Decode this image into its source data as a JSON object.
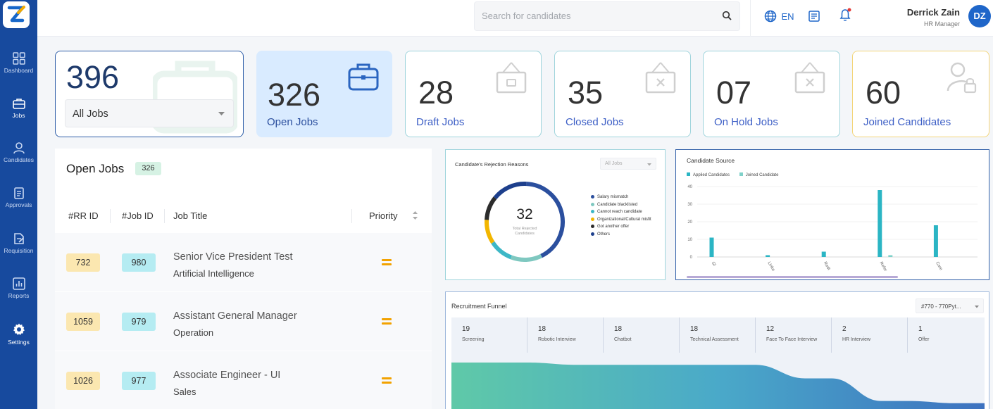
{
  "sidebar": {
    "items": [
      {
        "label": "Dashboard",
        "icon": "dashboard-icon"
      },
      {
        "label": "Jobs",
        "icon": "briefcase-icon",
        "active": true
      },
      {
        "label": "Candidates",
        "icon": "user-icon"
      },
      {
        "label": "Approvals",
        "icon": "clipboard-icon"
      },
      {
        "label": "Requisition",
        "icon": "edit-document-icon"
      },
      {
        "label": "Reports",
        "icon": "bar-chart-icon"
      },
      {
        "label": "Settings",
        "icon": "gear-icon"
      }
    ]
  },
  "topbar": {
    "search_placeholder": "Search for candidates",
    "language": "EN",
    "user_name": "Derrick Zain",
    "user_role": "HR Manager",
    "avatar_initials": "DZ"
  },
  "cards": [
    {
      "value": "396",
      "select": "All Jobs"
    },
    {
      "value": "326",
      "label": "Open Jobs"
    },
    {
      "value": "28",
      "label": "Draft Jobs"
    },
    {
      "value": "35",
      "label": "Closed Jobs"
    },
    {
      "value": "07",
      "label": "On Hold Jobs"
    },
    {
      "value": "60",
      "label": "Joined Candidates"
    }
  ],
  "open_jobs": {
    "title": "Open Jobs",
    "count": "326",
    "columns": [
      "#RR ID",
      "#Job ID",
      "Job Title",
      "Priority"
    ],
    "rows": [
      {
        "rr": "732",
        "job": "980",
        "title": "Senior Vice President Test",
        "dept": "Artificial Intelligence"
      },
      {
        "rr": "1059",
        "job": "979",
        "title": "Assistant General Manager",
        "dept": "Operation"
      },
      {
        "rr": "1026",
        "job": "977",
        "title": "Associate Engineer - UI",
        "dept": "Sales"
      }
    ]
  },
  "rejection": {
    "title": "Candidate's Rejection Reasons",
    "filter": "All Jobs",
    "total": "32",
    "total_label": "Total Rejected Candidates",
    "legend": [
      {
        "label": "Salary mismatch",
        "color": "#2b4f9e"
      },
      {
        "label": "Candidate blacklisted",
        "color": "#7fc8c0"
      },
      {
        "label": "Cannot reach candidate",
        "color": "#3db7c6"
      },
      {
        "label": "Organizational/Cultural misfit",
        "color": "#f2b600"
      },
      {
        "label": "Got another offer",
        "color": "#2c2c2c"
      },
      {
        "label": "Others",
        "color": "#1d3f8c"
      }
    ]
  },
  "chart_data": {
    "type": "bar",
    "title": "Candidate Source",
    "categories": [
      "Gl",
      "Linke",
      "Redt",
      "Refer",
      "Care"
    ],
    "series": [
      {
        "name": "Applied Candidates",
        "values": [
          11,
          1,
          3,
          38,
          18
        ]
      },
      {
        "name": "Joined Candidate",
        "values": [
          0,
          0,
          0,
          1,
          0
        ]
      }
    ],
    "yticks": [
      "0",
      "10",
      "20",
      "30",
      "40"
    ],
    "ylim": [
      0,
      40
    ],
    "colors": [
      "#2bb5c4",
      "#7fd1c9"
    ],
    "legend_position": "top-left"
  },
  "funnel": {
    "title": "Recruitment Funnel",
    "filter": "#770 - 770Pyt...",
    "stages": [
      {
        "count": "19",
        "name": "Screening"
      },
      {
        "count": "18",
        "name": "Robotic Interview"
      },
      {
        "count": "18",
        "name": "Chatbot"
      },
      {
        "count": "18",
        "name": "Technical Assessment"
      },
      {
        "count": "12",
        "name": "Face To Face Interview"
      },
      {
        "count": "2",
        "name": "HR Interview"
      },
      {
        "count": "1",
        "name": "Offer"
      }
    ]
  }
}
